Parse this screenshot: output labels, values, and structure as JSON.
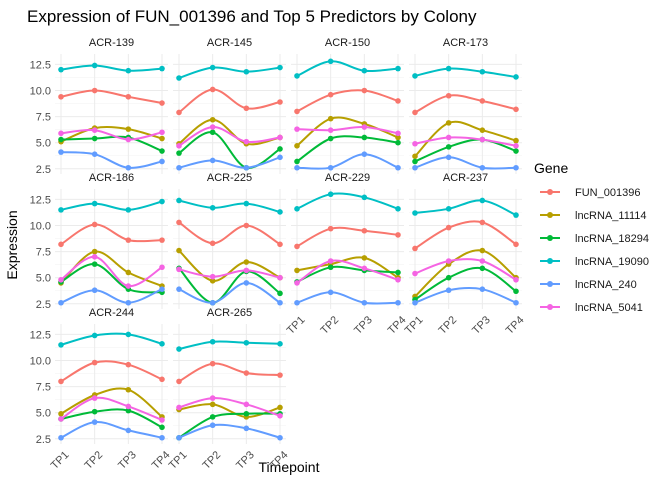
{
  "chart_data": {
    "type": "line",
    "title": "Expression of FUN_001396 and Top 5 Predictors by Colony",
    "xlabel": "Timepoint",
    "ylabel": "Expression",
    "categories": [
      "TP1",
      "TP2",
      "TP3",
      "TP4"
    ],
    "y_ticks": [
      "2.5",
      "5.0",
      "7.5",
      "10.0",
      "12.5"
    ],
    "ylim": [
      2.0,
      13.5
    ],
    "grid": true,
    "legend": {
      "title": "Gene",
      "position": "right",
      "entries": [
        {
          "name": "FUN_001396",
          "color": "#F8766D"
        },
        {
          "name": "lncRNA_11114",
          "color": "#B79F00"
        },
        {
          "name": "lncRNA_18294",
          "color": "#00BA38"
        },
        {
          "name": "lncRNA_19090",
          "color": "#00BFC4"
        },
        {
          "name": "lncRNA_240",
          "color": "#619CFF"
        },
        {
          "name": "lncRNA_5041",
          "color": "#F564E3"
        }
      ]
    },
    "panels": [
      {
        "name": "ACR-139",
        "series": [
          [
            9.4,
            10.0,
            9.4,
            8.8
          ],
          [
            5.1,
            6.4,
            6.3,
            5.4
          ],
          [
            5.3,
            5.4,
            5.5,
            4.2
          ],
          [
            12.0,
            12.4,
            11.9,
            12.1
          ],
          [
            4.1,
            3.9,
            2.6,
            3.2
          ],
          [
            5.9,
            6.2,
            5.3,
            6.0
          ]
        ]
      },
      {
        "name": "ACR-145",
        "series": [
          [
            7.9,
            10.1,
            8.3,
            8.9
          ],
          [
            4.9,
            7.2,
            4.9,
            5.5
          ],
          [
            4.0,
            6.0,
            2.6,
            4.4
          ],
          [
            11.2,
            12.2,
            11.8,
            12.2
          ],
          [
            2.6,
            3.3,
            2.6,
            3.6
          ],
          [
            4.7,
            6.5,
            5.1,
            5.5
          ]
        ]
      },
      {
        "name": "ACR-150",
        "series": [
          [
            8.0,
            9.6,
            10.0,
            9.0
          ],
          [
            4.7,
            7.3,
            6.8,
            5.5
          ],
          [
            3.2,
            5.4,
            5.5,
            5.0
          ],
          [
            11.4,
            12.8,
            11.9,
            12.1
          ],
          [
            2.6,
            2.6,
            3.9,
            2.6
          ],
          [
            6.3,
            6.2,
            6.5,
            5.9
          ]
        ]
      },
      {
        "name": "ACR-173",
        "series": [
          [
            7.9,
            9.5,
            9.0,
            8.2
          ],
          [
            3.7,
            6.9,
            6.2,
            5.2
          ],
          [
            3.2,
            4.6,
            5.3,
            4.2
          ],
          [
            11.4,
            12.1,
            11.8,
            11.3
          ],
          [
            2.6,
            3.6,
            2.6,
            2.6
          ],
          [
            4.9,
            5.5,
            5.3,
            4.7
          ]
        ]
      },
      {
        "name": "ACR-186",
        "series": [
          [
            8.2,
            10.1,
            8.6,
            8.6
          ],
          [
            4.5,
            7.5,
            5.5,
            4.2
          ],
          [
            4.6,
            6.3,
            3.9,
            3.6
          ],
          [
            11.5,
            12.1,
            11.5,
            12.3
          ],
          [
            2.6,
            3.8,
            2.6,
            3.9
          ],
          [
            4.8,
            7.0,
            4.2,
            6.0
          ]
        ]
      },
      {
        "name": "ACR-225",
        "series": [
          [
            10.3,
            8.3,
            10.0,
            8.2
          ],
          [
            7.6,
            4.7,
            6.5,
            5.0
          ],
          [
            5.9,
            2.6,
            5.6,
            3.5
          ],
          [
            12.4,
            11.7,
            12.1,
            11.3
          ],
          [
            3.9,
            2.6,
            4.5,
            2.6
          ],
          [
            5.8,
            5.1,
            5.7,
            5.0
          ]
        ]
      },
      {
        "name": "ACR-229",
        "series": [
          [
            8.0,
            9.7,
            9.5,
            9.1
          ],
          [
            5.7,
            6.3,
            6.9,
            5.0
          ],
          [
            4.6,
            6.0,
            5.7,
            5.5
          ],
          [
            11.6,
            13.0,
            12.7,
            11.6
          ],
          [
            2.6,
            3.6,
            2.6,
            2.6
          ],
          [
            4.5,
            6.6,
            5.9,
            4.8
          ]
        ]
      },
      {
        "name": "ACR-237",
        "series": [
          [
            7.8,
            9.8,
            10.3,
            8.2
          ],
          [
            3.2,
            6.3,
            7.6,
            5.0
          ],
          [
            2.9,
            5.0,
            5.9,
            3.7
          ],
          [
            11.2,
            11.6,
            12.4,
            11.0
          ],
          [
            2.6,
            3.8,
            3.9,
            2.6
          ],
          [
            5.4,
            6.6,
            6.6,
            4.8
          ]
        ]
      },
      {
        "name": "ACR-244",
        "series": [
          [
            8.0,
            9.8,
            9.6,
            8.2
          ],
          [
            4.9,
            6.7,
            7.2,
            4.6
          ],
          [
            4.4,
            5.1,
            5.2,
            3.6
          ],
          [
            11.5,
            12.4,
            12.5,
            11.6
          ],
          [
            2.6,
            4.1,
            3.3,
            2.6
          ],
          [
            4.4,
            6.4,
            5.6,
            4.3
          ]
        ]
      },
      {
        "name": "ACR-265",
        "series": [
          [
            8.0,
            9.7,
            8.8,
            8.6
          ],
          [
            5.3,
            5.8,
            4.6,
            5.5
          ],
          [
            2.6,
            4.6,
            4.9,
            4.9
          ],
          [
            11.1,
            11.8,
            11.7,
            11.6
          ],
          [
            2.6,
            3.8,
            3.5,
            2.6
          ],
          [
            5.5,
            6.4,
            5.8,
            4.7
          ]
        ]
      }
    ]
  }
}
